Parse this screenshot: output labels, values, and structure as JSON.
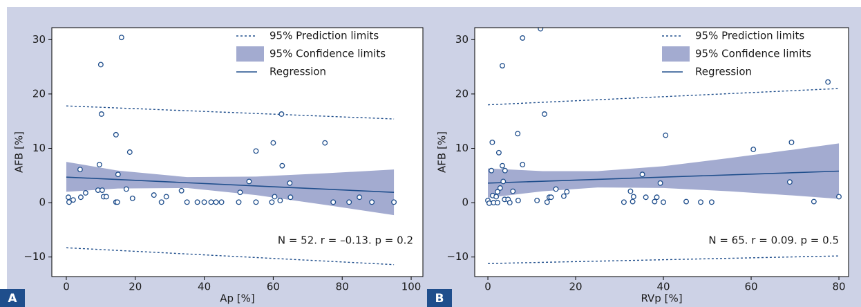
{
  "chart_data": [
    {
      "type": "scatter",
      "panel": "A",
      "xlabel": "Ap [%]",
      "ylabel": "AFB [%]",
      "annotation": "N = 52. r = –0.13. p = 0.2",
      "xlim": [
        -4.2,
        103.4
      ],
      "ylim": [
        -13.6,
        32.2
      ],
      "xticks": [
        0,
        20,
        40,
        60,
        80,
        100
      ],
      "yticks": [
        {
          "value": -10,
          "label": "−10"
        },
        0,
        10,
        20,
        30
      ],
      "legend": "upper right",
      "point_color": "#1f4e8c",
      "x": [
        0.6,
        0.8,
        2.0,
        4.0,
        4.2,
        5.6,
        10.0,
        10.2,
        9.6,
        9.2,
        10.4,
        10.8,
        11.6,
        14.4,
        14.8,
        14.4,
        15.0,
        16.0,
        17.4,
        18.4,
        19.2,
        25.4,
        27.6,
        29.0,
        33.4,
        35.0,
        38.0,
        40.0,
        42.0,
        43.4,
        45.0,
        50.0,
        50.4,
        53.0,
        55.0,
        55.0,
        59.6,
        60.0,
        60.4,
        62.0,
        62.4,
        62.6,
        64.8,
        65.0,
        75.0,
        77.4,
        82.0,
        85.0,
        88.6,
        95.0
      ],
      "values": [
        1.0,
        0.1,
        0.5,
        6.1,
        1.0,
        1.8,
        25.4,
        16.3,
        7.0,
        2.3,
        2.3,
        1.1,
        1.1,
        0.1,
        0.1,
        12.5,
        5.2,
        30.4,
        2.5,
        9.3,
        0.8,
        1.4,
        0.1,
        1.1,
        2.2,
        0.1,
        0.1,
        0.1,
        0.1,
        0.1,
        0.1,
        0.1,
        1.9,
        3.9,
        9.5,
        0.1,
        0.1,
        11.0,
        1.1,
        0.4,
        16.3,
        6.8,
        3.6,
        1.0,
        11.0,
        0.1,
        0.1,
        1.0,
        0.1,
        0.1
      ],
      "series": [
        {
          "name": "95% Prediction limits",
          "kind": "dotted",
          "color": "#1f4e8c",
          "x": [
            0,
            95
          ],
          "upper": [
            17.8,
            15.4
          ],
          "lower": [
            -8.3,
            -11.4
          ]
        },
        {
          "name": "95% Confidence limits",
          "kind": "band",
          "color": "#a3abd0",
          "x": [
            0,
            15,
            35,
            55,
            75,
            95
          ],
          "upper": [
            7.5,
            5.9,
            4.7,
            4.8,
            5.4,
            6.1
          ],
          "lower": [
            2.0,
            2.6,
            2.7,
            1.4,
            -0.4,
            -2.3
          ]
        },
        {
          "name": "Regression",
          "kind": "solid",
          "color": "#1f4e8c",
          "x": [
            0,
            95
          ],
          "values": [
            4.7,
            1.9
          ]
        }
      ]
    },
    {
      "type": "scatter",
      "panel": "B",
      "xlabel": "RVp [%]",
      "ylabel": "AFB [%]",
      "annotation": "N = 65. r = 0.09. p = 0.5",
      "xlim": [
        -3.0,
        82.2
      ],
      "ylim": [
        -13.6,
        32.2
      ],
      "xticks": [
        0,
        20,
        40,
        60,
        80
      ],
      "yticks": [
        {
          "value": -10,
          "label": "−10"
        },
        0,
        10,
        20,
        30
      ],
      "legend": "upper right",
      "point_color": "#1f4e8c",
      "x": [
        0,
        0.3,
        0.8,
        1.0,
        1.1,
        1.3,
        1.9,
        2.2,
        2.2,
        2.5,
        2.8,
        3.3,
        3.3,
        3.5,
        3.8,
        3.9,
        4.6,
        5.0,
        5.7,
        6.8,
        6.9,
        7.9,
        7.9,
        11.2,
        12.0,
        12.9,
        13.5,
        14.0,
        14.4,
        15.5,
        17.3,
        18.0,
        31.0,
        32.5,
        33.0,
        33.2,
        35.2,
        36.0,
        38.0,
        38.5,
        39.3,
        40.0,
        40.5,
        45.2,
        48.5,
        51.0,
        60.5,
        68.8,
        69.2,
        74.3,
        77.5,
        80.0
      ],
      "values": [
        0.4,
        -0.1,
        5.9,
        11.1,
        1.3,
        0.0,
        1.1,
        0.0,
        2.0,
        9.2,
        2.7,
        6.8,
        25.2,
        3.9,
        0.6,
        5.9,
        0.6,
        0.0,
        2.1,
        12.7,
        0.4,
        7.0,
        30.3,
        0.4,
        32.0,
        16.3,
        0.1,
        1.0,
        1.0,
        2.5,
        1.2,
        2.0,
        0.1,
        2.1,
        0.2,
        1.1,
        5.2,
        1.0,
        0.2,
        1.0,
        3.6,
        0.1,
        12.4,
        0.2,
        0.1,
        0.1,
        9.8,
        3.8,
        11.1,
        0.2,
        22.2,
        1.1
      ],
      "series": [
        {
          "name": "95% Prediction limits",
          "kind": "dotted",
          "color": "#1f4e8c",
          "x": [
            0,
            80
          ],
          "upper": [
            18.0,
            21.0
          ],
          "lower": [
            -11.2,
            -9.8
          ]
        },
        {
          "name": "95% Confidence limits",
          "kind": "band",
          "color": "#a3abd0",
          "x": [
            0,
            12.5,
            25,
            40,
            55,
            70,
            80
          ],
          "upper": [
            6.3,
            5.8,
            5.8,
            6.7,
            8.2,
            9.8,
            10.9
          ],
          "lower": [
            0.9,
            2.1,
            2.8,
            2.7,
            2.1,
            1.3,
            0.7
          ]
        },
        {
          "name": "Regression",
          "kind": "solid",
          "color": "#1f4e8c",
          "x": [
            0,
            80
          ],
          "values": [
            3.6,
            5.8
          ]
        }
      ]
    }
  ]
}
